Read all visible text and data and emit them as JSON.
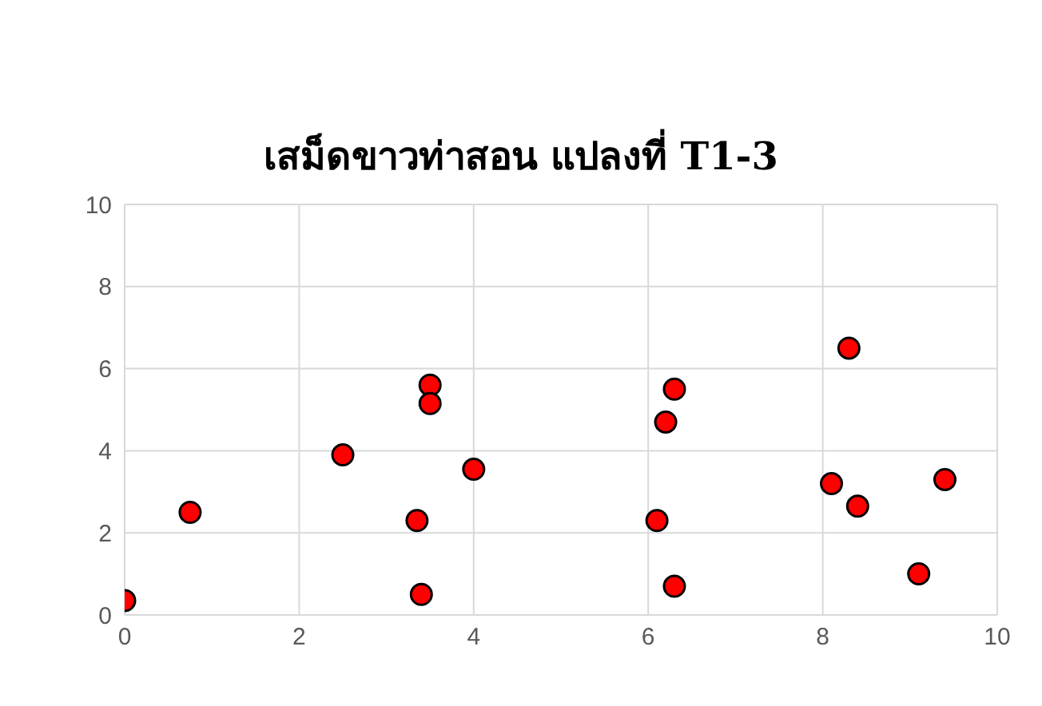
{
  "chart_data": {
    "type": "scatter",
    "title": "เสม็ดขาวท่าสอน แปลงที่ T1-3",
    "x": [
      0,
      0.75,
      2.5,
      3.5,
      3.5,
      3.35,
      3.4,
      4,
      6.1,
      6.2,
      6.3,
      6.3,
      8.3,
      8.1,
      8.4,
      9.1,
      9.4
    ],
    "values": [
      0.35,
      2.5,
      3.9,
      5.6,
      5.15,
      2.3,
      0.5,
      3.55,
      2.3,
      4.7,
      5.5,
      0.7,
      6.5,
      3.2,
      2.65,
      1,
      3.3
    ],
    "color": "#ff0000",
    "marker": "circle",
    "xlim": [
      0,
      10
    ],
    "xticks": [
      0,
      2,
      4,
      6,
      8,
      10
    ],
    "ylim": [
      0,
      10
    ],
    "yticks": [
      0,
      2,
      4,
      6,
      8,
      10
    ],
    "grid": true
  }
}
